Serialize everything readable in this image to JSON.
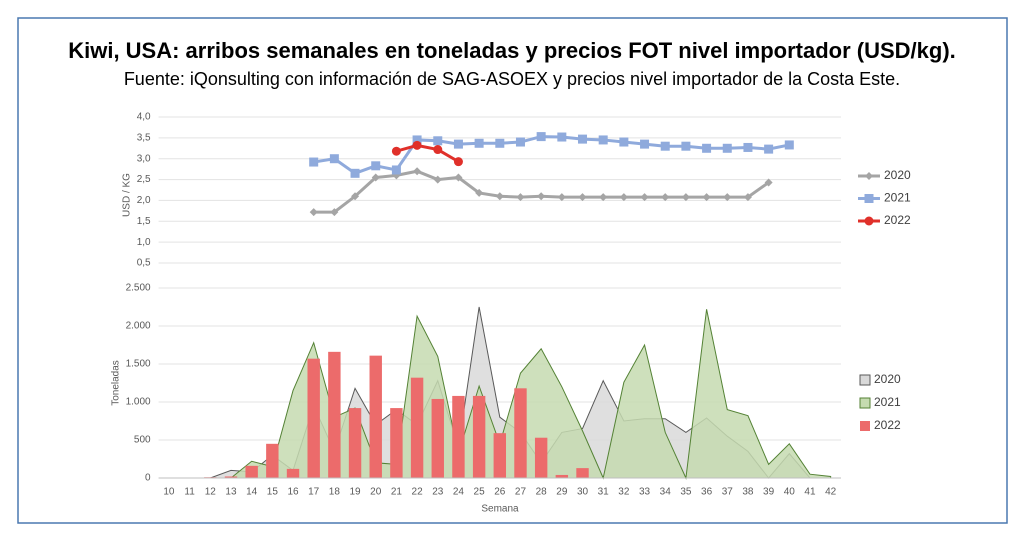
{
  "title": "Kiwi, USA: arribos semanales en toneladas y precios FOT nivel importador (USD/kg).",
  "subtitle": "Fuente: iQonsulting con información de SAG-ASOEX y precios nivel importador de la Costa Este.",
  "chart_data": [
    {
      "type": "line",
      "ylabel": "USD / KG",
      "grid": true,
      "legend": "right",
      "ylim": [
        0.5,
        4.0
      ],
      "yticks": [
        {
          "value": 0.5,
          "label": "0,5"
        },
        {
          "value": 1.0,
          "label": "1,0"
        },
        {
          "value": 1.5,
          "label": "1,5"
        },
        {
          "value": 2.0,
          "label": "2,0"
        },
        {
          "value": 2.5,
          "label": "2,5"
        },
        {
          "value": 3.0,
          "label": "3,0"
        },
        {
          "value": 3.5,
          "label": "3,5"
        },
        {
          "value": 4.0,
          "label": "4,0"
        }
      ],
      "series": [
        {
          "name": "2020",
          "color": "#a5a5a5",
          "marker": "diamond",
          "values": [
            null,
            null,
            null,
            null,
            null,
            null,
            null,
            1.72,
            1.72,
            2.1,
            2.55,
            2.6,
            2.7,
            2.5,
            2.55,
            2.18,
            2.1,
            2.08,
            2.1,
            2.08,
            2.08,
            2.08,
            2.08,
            2.08,
            2.08,
            2.08,
            2.08,
            2.08,
            2.08,
            2.43,
            null,
            null,
            null
          ]
        },
        {
          "name": "2021",
          "color": "#8faadc",
          "marker": "square",
          "values": [
            null,
            null,
            null,
            null,
            null,
            null,
            null,
            2.92,
            3.0,
            2.65,
            2.83,
            2.73,
            3.45,
            3.43,
            3.35,
            3.37,
            3.37,
            3.4,
            3.53,
            3.52,
            3.47,
            3.45,
            3.4,
            3.35,
            3.3,
            3.3,
            3.25,
            3.25,
            3.27,
            3.23,
            3.33,
            null,
            null
          ]
        },
        {
          "name": "2022",
          "color": "#e0302a",
          "marker": "circle",
          "values": [
            null,
            null,
            null,
            null,
            null,
            null,
            null,
            null,
            null,
            null,
            null,
            3.18,
            3.32,
            3.22,
            2.93,
            null,
            null,
            null,
            null,
            null,
            null,
            null,
            null,
            null,
            null,
            null,
            null,
            null,
            null,
            null,
            null,
            null,
            null
          ]
        }
      ]
    },
    {
      "type": "combo",
      "ylabel": "Toneladas",
      "xlabel": "Semana",
      "grid": true,
      "legend": "right",
      "categories": [
        "10",
        "11",
        "12",
        "13",
        "14",
        "15",
        "16",
        "17",
        "18",
        "19",
        "20",
        "21",
        "22",
        "23",
        "24",
        "25",
        "26",
        "27",
        "28",
        "29",
        "30",
        "31",
        "32",
        "33",
        "34",
        "35",
        "36",
        "37",
        "38",
        "39",
        "40",
        "41",
        "42"
      ],
      "ylim": [
        0,
        2500
      ],
      "yticks": [
        0,
        500,
        {
          "value": 1000,
          "label": "1.000"
        },
        {
          "value": 1500,
          "label": "1.500"
        },
        {
          "value": 2000,
          "label": "2.000"
        },
        {
          "value": 2500,
          "label": "2.500"
        }
      ],
      "series": [
        {
          "name": "2020",
          "type": "area",
          "color": "#d9d9d9",
          "stroke": "#595959",
          "values": [
            0,
            0,
            0,
            100,
            80,
            300,
            100,
            950,
            350,
            1180,
            700,
            900,
            700,
            1280,
            400,
            2250,
            800,
            600,
            200,
            600,
            650,
            1280,
            750,
            780,
            780,
            600,
            790,
            550,
            350,
            0,
            320,
            0,
            0
          ]
        },
        {
          "name": "2021",
          "type": "area",
          "color": "#c5dbb0",
          "stroke": "#548235",
          "values": [
            0,
            0,
            0,
            0,
            220,
            150,
            1150,
            1780,
            800,
            920,
            200,
            180,
            2130,
            1600,
            320,
            1210,
            450,
            1380,
            1700,
            1200,
            620,
            0,
            1260,
            1750,
            600,
            0,
            2220,
            900,
            820,
            180,
            450,
            50,
            20
          ]
        },
        {
          "name": "2022",
          "type": "bar",
          "color": "#ec6b6b",
          "values": [
            null,
            null,
            10,
            20,
            160,
            450,
            120,
            1570,
            1660,
            920,
            1610,
            920,
            1320,
            1040,
            1080,
            1080,
            590,
            1180,
            530,
            40,
            130,
            null,
            null,
            null,
            null,
            null,
            null,
            null,
            null,
            null,
            null,
            null,
            null
          ]
        }
      ]
    }
  ]
}
